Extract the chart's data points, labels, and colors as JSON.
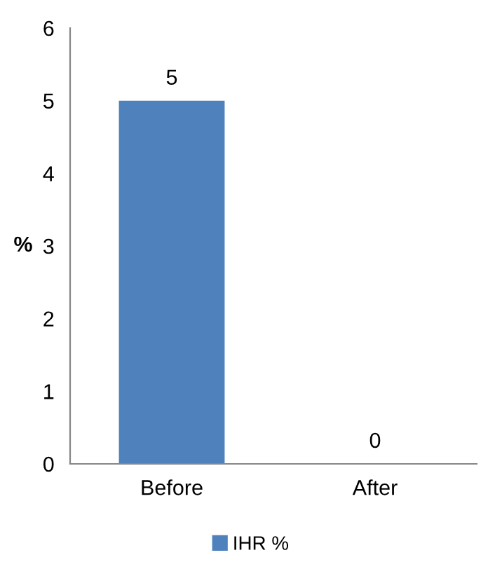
{
  "chart_data": {
    "type": "bar",
    "ylabel": "%",
    "categories": [
      "Before",
      "After"
    ],
    "series": [
      {
        "name": "IHR %",
        "color": "#4f81bd",
        "values": [
          5,
          0
        ]
      }
    ],
    "ylim": [
      0,
      6
    ],
    "yticks": [
      0,
      1,
      2,
      3,
      4,
      5,
      6
    ],
    "grid": false,
    "legend": "bottom",
    "data_labels": true
  }
}
